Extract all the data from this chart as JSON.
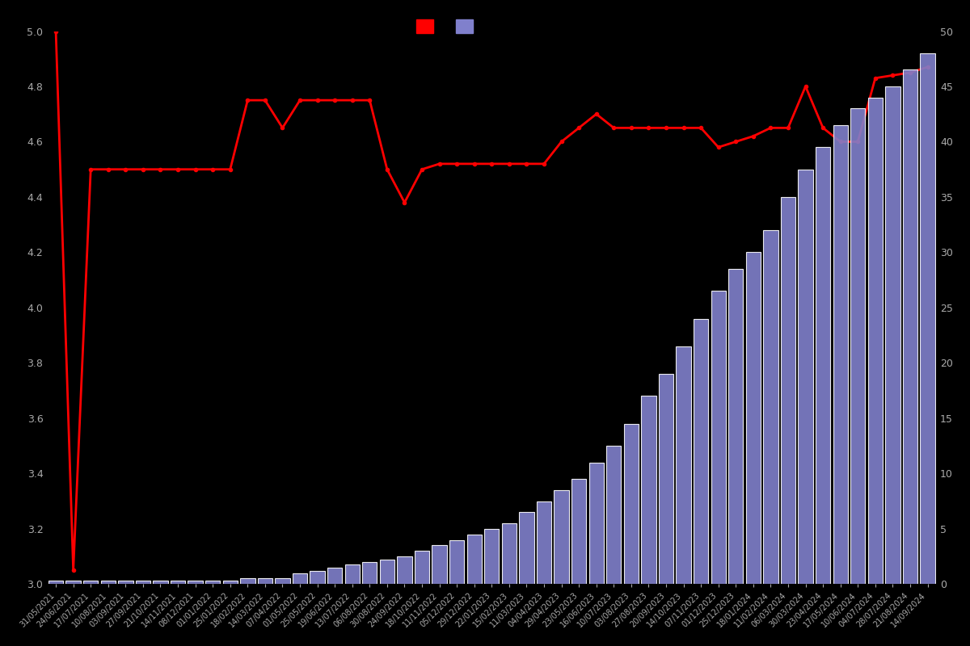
{
  "background_color": "#000000",
  "left_ylim": [
    3.0,
    5.0
  ],
  "right_ylim": [
    0,
    50
  ],
  "left_yticks": [
    3.0,
    3.2,
    3.4,
    3.6,
    3.8,
    4.0,
    4.2,
    4.4,
    4.6,
    4.8,
    5.0
  ],
  "right_yticks": [
    0,
    5,
    10,
    15,
    20,
    25,
    30,
    35,
    40,
    45,
    50
  ],
  "tick_color": "#aaaaaa",
  "bar_color": "#8080cc",
  "bar_edge_color": "#ffffff",
  "line_color": "#ff0000",
  "line_marker": "o",
  "line_marker_size": 3,
  "line_width": 2.0,
  "dates": [
    "31/05/2021",
    "24/06/2021",
    "17/07/2021",
    "10/08/2021",
    "03/09/2021",
    "27/09/2021",
    "21/10/2021",
    "14/11/2021",
    "08/12/2021",
    "01/01/2022",
    "25/01/2022",
    "18/02/2022",
    "14/03/2022",
    "07/04/2022",
    "01/05/2022",
    "25/05/2022",
    "19/06/2022",
    "13/07/2022",
    "06/08/2022",
    "30/08/2022",
    "24/09/2022",
    "18/10/2022",
    "11/11/2022",
    "05/12/2022",
    "29/12/2022",
    "22/01/2023",
    "15/02/2023",
    "11/03/2023",
    "04/04/2023",
    "29/04/2023",
    "23/05/2023",
    "16/06/2023",
    "10/07/2023",
    "03/08/2023",
    "27/08/2023",
    "20/09/2023",
    "14/10/2023",
    "07/11/2023",
    "01/12/2023",
    "25/12/2023",
    "18/01/2024",
    "11/02/2024",
    "06/03/2024",
    "30/03/2024",
    "23/04/2024",
    "17/05/2024",
    "10/06/2024",
    "04/07/2024",
    "28/07/2024",
    "21/08/2024",
    "14/09/2024"
  ],
  "bar_values": [
    0.3,
    0.3,
    0.3,
    0.3,
    0.3,
    0.3,
    0.3,
    0.3,
    0.3,
    0.3,
    0.3,
    0.5,
    0.5,
    0.5,
    1.0,
    1.2,
    1.5,
    1.8,
    2.0,
    2.2,
    2.5,
    3.0,
    3.5,
    4.0,
    4.5,
    5.0,
    5.5,
    6.5,
    7.5,
    8.5,
    9.5,
    11.0,
    12.5,
    14.5,
    17.0,
    19.0,
    21.5,
    24.0,
    26.5,
    28.5,
    30.0,
    32.0,
    35.0,
    37.5,
    39.5,
    41.5,
    43.0,
    44.0,
    45.0,
    46.5,
    48.0
  ],
  "line_values": [
    5.0,
    3.05,
    4.5,
    4.5,
    4.5,
    4.5,
    4.5,
    4.5,
    4.5,
    4.5,
    4.5,
    4.75,
    4.75,
    4.65,
    4.75,
    4.75,
    4.75,
    4.75,
    4.75,
    4.5,
    4.38,
    4.5,
    4.52,
    4.52,
    4.52,
    4.52,
    4.52,
    4.52,
    4.52,
    4.6,
    4.65,
    4.7,
    4.65,
    4.65,
    4.65,
    4.65,
    4.65,
    4.65,
    4.58,
    4.6,
    4.62,
    4.65,
    4.65,
    4.8,
    4.65,
    4.6,
    4.6,
    4.83,
    4.84,
    4.85,
    4.87
  ]
}
